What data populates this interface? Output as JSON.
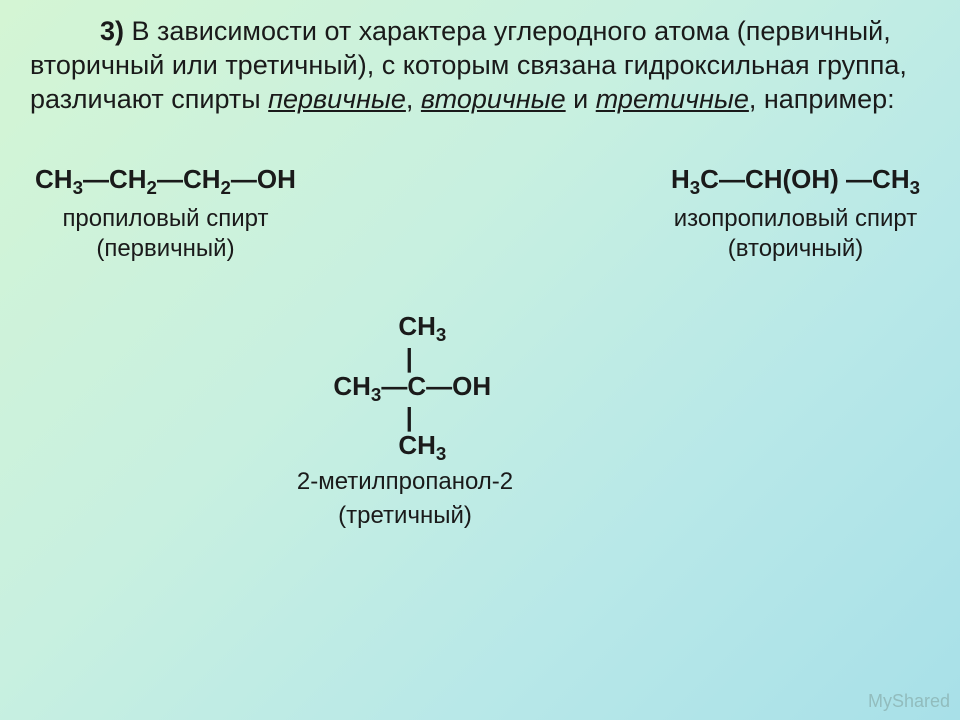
{
  "intro": {
    "num_label": "3)",
    "text_part1": " В зависимости от характера углеродного атома (первичный, вторичный или третичный), с которым связана гидроксильная группа, различают спирты ",
    "u1": "первичные",
    "sep1": ", ",
    "u2": "вторичные",
    "sep2": " и ",
    "u3": "третичные",
    "text_part2": ", например:"
  },
  "primary": {
    "name": "пропиловый спирт",
    "type": "(первичный)"
  },
  "secondary": {
    "name": "изопропиловый спирт",
    "type": "(вторичный)"
  },
  "tertiary": {
    "name": "2-метилпропанол-2",
    "type": "(третичный)"
  },
  "watermark": "MyShared",
  "colors": {
    "background_start": "#d4f5d4",
    "background_end": "#a8e0e8",
    "text": "#1a1a1a",
    "watermark": "rgba(100,120,110,0.35)"
  },
  "typography": {
    "intro_fontsize": 27,
    "formula_fontsize": 26,
    "label_fontsize": 24
  }
}
